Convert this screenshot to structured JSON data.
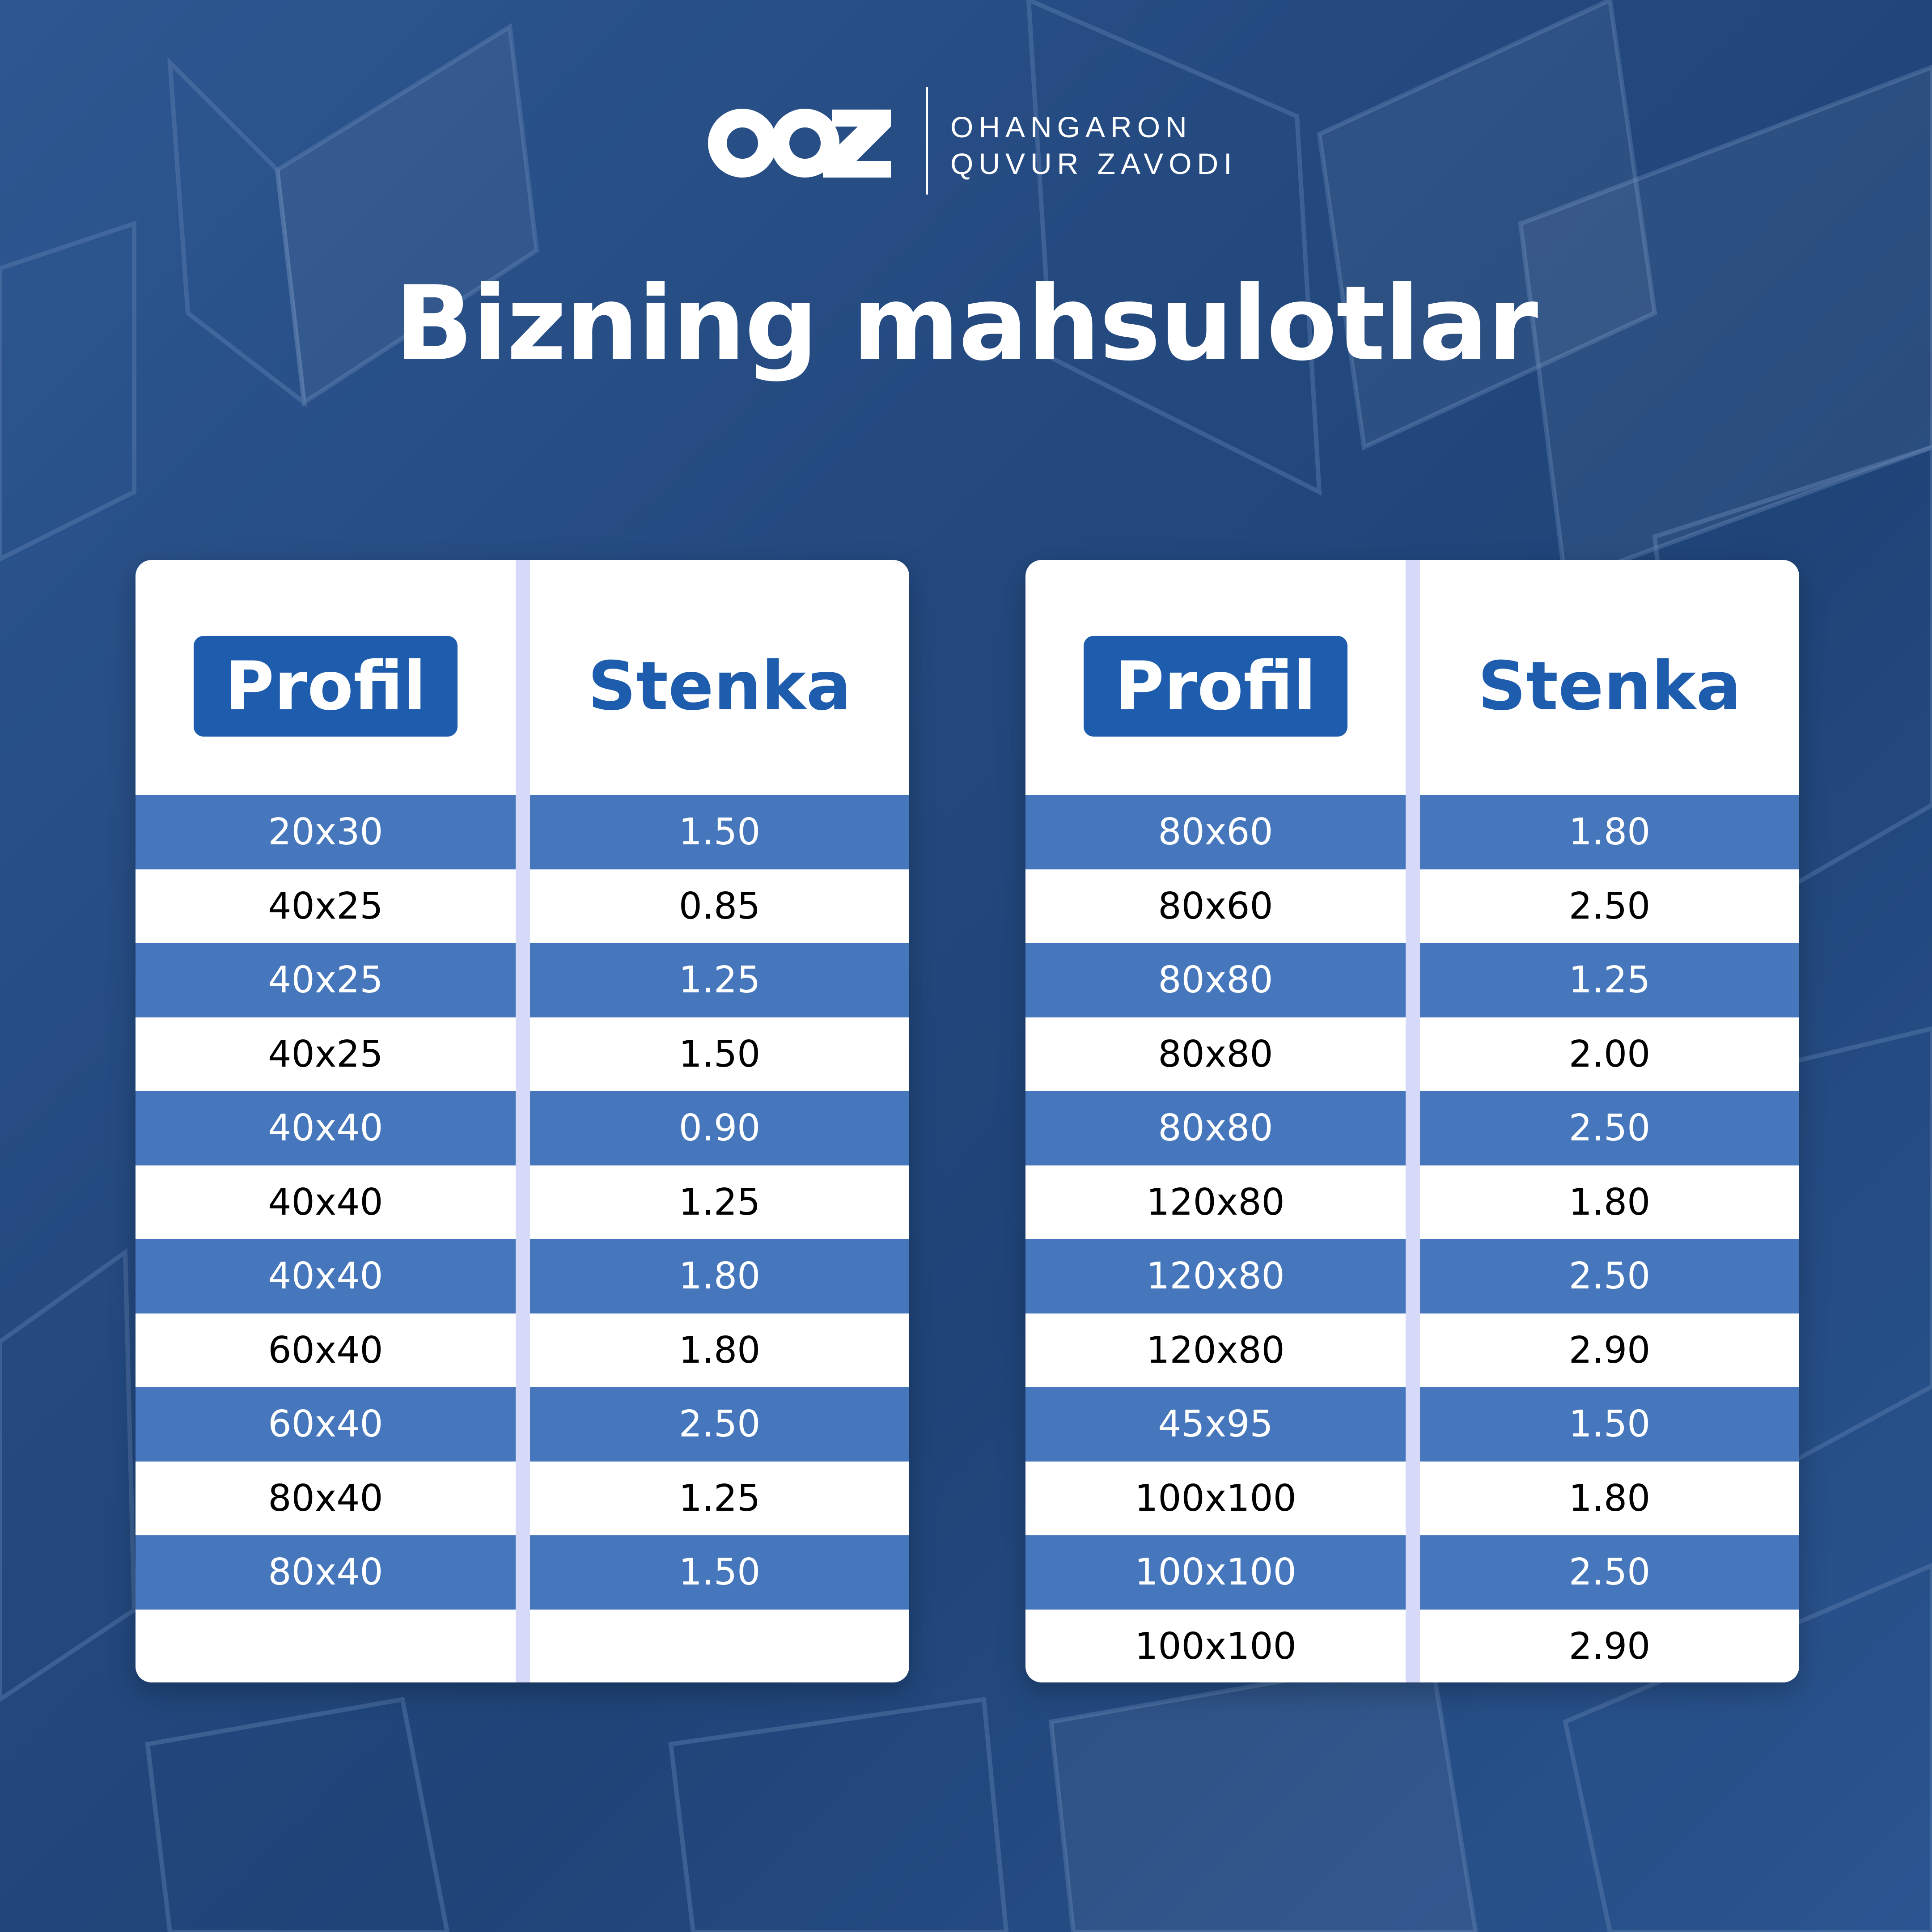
{
  "brand": {
    "mark": "OOZ",
    "line1": "OHANGARON",
    "line2": "QUVUR ZAVODI"
  },
  "title": "Bizning mahsulotlar",
  "colors": {
    "background": "#244a80",
    "accent": "#1e5cad",
    "stripe": "#4677bd",
    "divider": "#d6d9f7"
  },
  "tables": [
    {
      "header": {
        "profil": "Profil",
        "stenka": "Stenka"
      },
      "rows": [
        {
          "profil": "20x30",
          "stenka": "1.50"
        },
        {
          "profil": "40x25",
          "stenka": "0.85"
        },
        {
          "profil": "40x25",
          "stenka": "1.25"
        },
        {
          "profil": "40x25",
          "stenka": "1.50"
        },
        {
          "profil": "40x40",
          "stenka": "0.90"
        },
        {
          "profil": "40x40",
          "stenka": "1.25"
        },
        {
          "profil": "40x40",
          "stenka": "1.80"
        },
        {
          "profil": "60x40",
          "stenka": "1.80"
        },
        {
          "profil": "60x40",
          "stenka": "2.50"
        },
        {
          "profil": "80x40",
          "stenka": "1.25"
        },
        {
          "profil": "80x40",
          "stenka": "1.50"
        },
        {
          "profil": "",
          "stenka": ""
        }
      ]
    },
    {
      "header": {
        "profil": "Profil",
        "stenka": "Stenka"
      },
      "rows": [
        {
          "profil": "80x60",
          "stenka": "1.80"
        },
        {
          "profil": "80x60",
          "stenka": "2.50"
        },
        {
          "profil": "80x80",
          "stenka": "1.25"
        },
        {
          "profil": "80x80",
          "stenka": "2.00"
        },
        {
          "profil": "80x80",
          "stenka": "2.50"
        },
        {
          "profil": "120x80",
          "stenka": "1.80"
        },
        {
          "profil": "120x80",
          "stenka": "2.50"
        },
        {
          "profil": "120x80",
          "stenka": "2.90"
        },
        {
          "profil": "45x95",
          "stenka": "1.50"
        },
        {
          "profil": "100x100",
          "stenka": "1.80"
        },
        {
          "profil": "100x100",
          "stenka": "2.50"
        },
        {
          "profil": "100x100",
          "stenka": "2.90"
        }
      ]
    }
  ]
}
